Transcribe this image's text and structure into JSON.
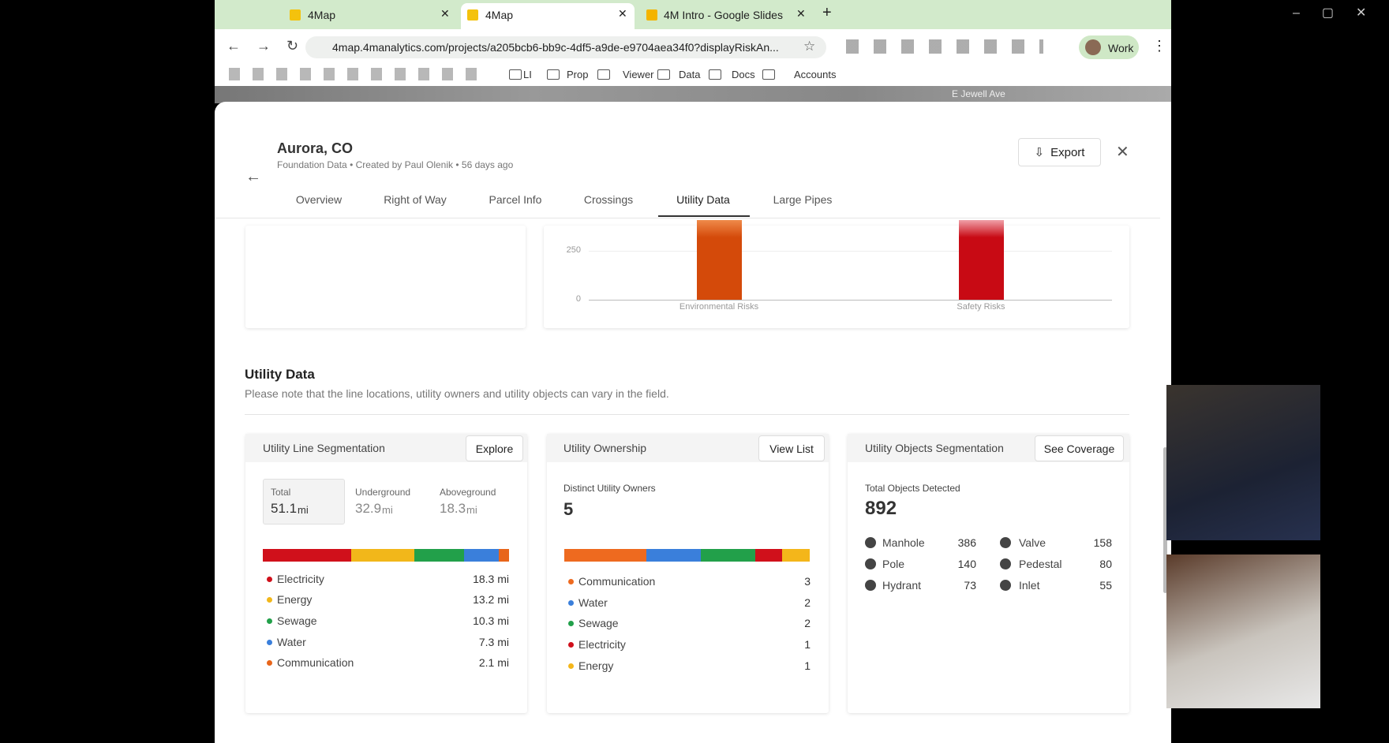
{
  "browser": {
    "tabs": [
      "4Map",
      "4Map",
      "4M Intro - Google Slides"
    ],
    "url": "4map.4manalytics.com/projects/a205bcb6-bb9c-4df5-a9de-e9704aea34f0?displayRiskAn...",
    "profile": "Work",
    "bookmarks": [
      "LI",
      "Prop",
      "Viewer",
      "Data",
      "Docs",
      "Accounts"
    ],
    "map_label": "E Jewell Ave"
  },
  "header": {
    "title": "Aurora, CO",
    "source": "Foundation Data",
    "author": "Created by Paul Olenik",
    "age": "56 days ago",
    "export": "Export"
  },
  "tabs": [
    "Overview",
    "Right of Way",
    "Parcel Info",
    "Crossings",
    "Utility Data",
    "Large Pipes"
  ],
  "risk_chart": {
    "yticks": [
      0,
      250
    ],
    "categories": [
      "Environmental Risks",
      "Safety Risks"
    ]
  },
  "section": {
    "title": "Utility Data",
    "note": "Please note that the line locations, utility owners and utility objects can vary in the field."
  },
  "line_segmentation": {
    "title": "Utility Line Segmentation",
    "button": "Explore",
    "stats": [
      {
        "label": "Total",
        "value": "51.1",
        "unit": "mi"
      },
      {
        "label": "Underground",
        "value": "32.9",
        "unit": "mi"
      },
      {
        "label": "Aboveground",
        "value": "18.3",
        "unit": "mi"
      }
    ],
    "legend": [
      {
        "name": "Electricity",
        "value": 18.3,
        "label": "18.3 mi",
        "color": "#d0101b"
      },
      {
        "name": "Energy",
        "value": 13.2,
        "label": "13.2 mi",
        "color": "#f2b71a"
      },
      {
        "name": "Sewage",
        "value": 10.3,
        "label": "10.3 mi",
        "color": "#22a04a"
      },
      {
        "name": "Water",
        "value": 7.3,
        "label": "7.3 mi",
        "color": "#3a7fdb"
      },
      {
        "name": "Communication",
        "value": 2.1,
        "label": "2.1 mi",
        "color": "#e8651a"
      }
    ]
  },
  "ownership": {
    "title": "Utility Ownership",
    "button": "View List",
    "stat_label": "Distinct Utility Owners",
    "stat_value": "5",
    "legend": [
      {
        "name": "Communication",
        "value": 3,
        "color": "#ee6a1f"
      },
      {
        "name": "Water",
        "value": 2,
        "color": "#3a7fdb"
      },
      {
        "name": "Sewage",
        "value": 2,
        "color": "#22a04a"
      },
      {
        "name": "Electricity",
        "value": 1,
        "color": "#d0101b"
      },
      {
        "name": "Energy",
        "value": 1,
        "color": "#f4b61a"
      }
    ]
  },
  "objects": {
    "title": "Utility Objects Segmentation",
    "button": "See Coverage",
    "stat_label": "Total Objects Detected",
    "stat_value": "892",
    "items": [
      {
        "name": "Manhole",
        "value": "386"
      },
      {
        "name": "Valve",
        "value": "158"
      },
      {
        "name": "Pole",
        "value": "140"
      },
      {
        "name": "Pedestal",
        "value": "80"
      },
      {
        "name": "Hydrant",
        "value": "73"
      },
      {
        "name": "Inlet",
        "value": "55"
      }
    ]
  }
}
